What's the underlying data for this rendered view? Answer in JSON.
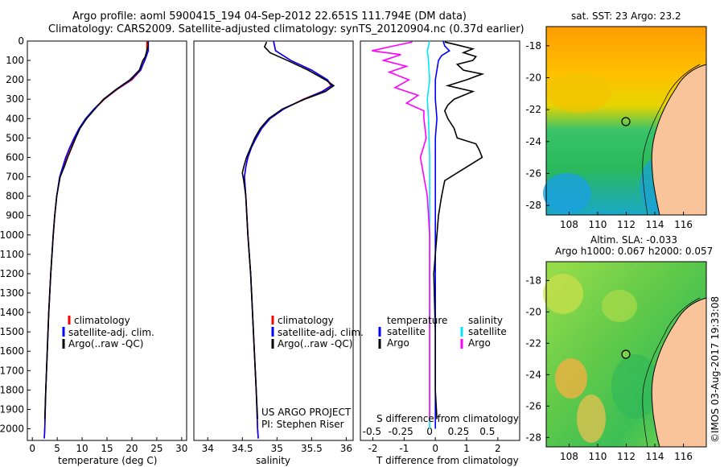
{
  "title": {
    "line1": "Argo profile: aoml 5900415_194 04-Sep-2012 22.651S 111.794E (DM data)",
    "line2": "Climatology: CARS2009. Satellite-adjusted climatology: synTS_20120904.nc (0.37d earlier)"
  },
  "colors": {
    "clim": "#ff0000",
    "sat": "#0000ff",
    "argo": "#000000",
    "sal_sat": "#00e5ff",
    "sal_argo": "#ff00ff"
  },
  "depth_ticks": [
    "0",
    "100",
    "200",
    "300",
    "400",
    "500",
    "600",
    "700",
    "800",
    "900",
    "1000",
    "1100",
    "1200",
    "1300",
    "1400",
    "1500",
    "1600",
    "1700",
    "1800",
    "1900",
    "2000"
  ],
  "chart_data": [
    {
      "type": "line",
      "name": "temperature",
      "xlabel": "temperature (deg C)",
      "ylabel": "depth",
      "xlim": [
        -1,
        31
      ],
      "ylim": [
        2060,
        0
      ],
      "xticks": [
        "0",
        "5",
        "10",
        "15",
        "20",
        "25",
        "30"
      ],
      "legend": [
        "climatology",
        "satellite-adj. clim.",
        "Argo(..raw -QC)"
      ],
      "series": [
        {
          "name": "climatology",
          "depth": [
            0,
            50,
            100,
            150,
            200,
            250,
            300,
            350,
            400,
            450,
            500,
            550,
            600,
            650,
            700,
            800,
            900,
            1000,
            1200,
            1400,
            1600,
            1800,
            2000,
            2050
          ],
          "values": [
            23,
            23,
            22.5,
            21.8,
            20,
            17,
            14.5,
            12.5,
            10.8,
            9.5,
            8.5,
            7.6,
            6.8,
            6.2,
            5.5,
            4.9,
            4.5,
            4.2,
            3.7,
            3.3,
            3,
            2.7,
            2.5,
            2.4
          ]
        },
        {
          "name": "satellite-adj. clim.",
          "depth": [
            0,
            50,
            100,
            150,
            200,
            250,
            300,
            350,
            400,
            450,
            500,
            550,
            600,
            650,
            700,
            800,
            900,
            1000,
            1200,
            1400,
            1600,
            1800,
            2000,
            2050
          ],
          "values": [
            23.3,
            23.3,
            22.6,
            21.7,
            19.8,
            16.9,
            14.4,
            12.4,
            10.7,
            9.4,
            8.4,
            7.5,
            6.7,
            6.1,
            5.5,
            4.9,
            4.5,
            4.2,
            3.7,
            3.3,
            3,
            2.7,
            2.5,
            2.4
          ]
        },
        {
          "name": "Argo",
          "depth": [
            5,
            20,
            50,
            80,
            100,
            150,
            200,
            250,
            300,
            350,
            400,
            450,
            500,
            550,
            600,
            650,
            700,
            800,
            900,
            1000,
            1200,
            1400,
            1600,
            1800,
            1950
          ],
          "values": [
            23.2,
            23.3,
            23.0,
            22.7,
            22.2,
            21.5,
            19.6,
            16.8,
            14.3,
            12.6,
            10.9,
            9.6,
            8.7,
            7.9,
            7.1,
            6.4,
            5.6,
            4.9,
            4.5,
            4.2,
            3.7,
            3.3,
            3,
            2.7,
            2.5
          ]
        }
      ]
    },
    {
      "type": "line",
      "name": "salinity",
      "xlabel": "salinity",
      "ylabel": "depth",
      "xlim": [
        33.8,
        36.1
      ],
      "ylim": [
        2060,
        0
      ],
      "xticks": [
        "34",
        "34.5",
        "35",
        "35.5",
        "36"
      ],
      "legend": [
        "climatology",
        "satellite-adj. clim.",
        "Argo(..raw -QC)"
      ],
      "annotation": [
        "US ARGO PROJECT",
        "PI: Stephen Riser"
      ],
      "series": [
        {
          "name": "climatology",
          "depth": [
            0,
            50,
            100,
            150,
            200,
            230,
            260,
            300,
            350,
            400,
            450,
            500,
            550,
            600,
            650,
            700,
            800,
            1000,
            1200,
            1500,
            1800,
            2000,
            2050
          ],
          "values": [
            34.95,
            34.98,
            35.2,
            35.5,
            35.72,
            35.78,
            35.65,
            35.38,
            35.1,
            34.9,
            34.78,
            34.7,
            34.63,
            34.58,
            34.55,
            34.53,
            34.55,
            34.58,
            34.62,
            34.66,
            34.7,
            34.72,
            34.73
          ]
        },
        {
          "name": "satellite-adj. clim.",
          "depth": [
            0,
            50,
            100,
            150,
            200,
            230,
            260,
            300,
            350,
            400,
            450,
            500,
            550,
            600,
            650,
            700,
            800,
            1000,
            1200,
            1500,
            1800,
            2000,
            2050
          ],
          "values": [
            34.95,
            34.98,
            35.2,
            35.5,
            35.73,
            35.79,
            35.66,
            35.39,
            35.1,
            34.9,
            34.78,
            34.7,
            34.63,
            34.58,
            34.55,
            34.53,
            34.55,
            34.58,
            34.62,
            34.66,
            34.7,
            34.72,
            34.73
          ]
        },
        {
          "name": "Argo",
          "depth": [
            5,
            30,
            60,
            100,
            150,
            200,
            230,
            260,
            300,
            350,
            400,
            450,
            500,
            550,
            600,
            650,
            680,
            720,
            800,
            1000,
            1200,
            1500,
            1800,
            1950
          ],
          "values": [
            34.85,
            34.82,
            34.9,
            35.15,
            35.45,
            35.7,
            35.82,
            35.7,
            35.4,
            35.08,
            34.88,
            34.76,
            34.68,
            34.62,
            34.56,
            34.52,
            34.5,
            34.52,
            34.55,
            34.58,
            34.62,
            34.66,
            34.7,
            34.72
          ]
        }
      ]
    },
    {
      "type": "line",
      "name": "differences",
      "xlabel": "T difference from climatology",
      "xlabel_top": "S difference from climatology",
      "xlim": [
        -2.4,
        2.7
      ],
      "ylim": [
        2060,
        0
      ],
      "xticks": [
        "-2",
        "-1",
        "0",
        "1",
        "2"
      ],
      "xticks_top": [
        "-0.5",
        "-0.25",
        "0",
        "0.25",
        "0.5"
      ],
      "legend_left": [
        "temperature",
        "satellite",
        "Argo"
      ],
      "legend_right": [
        "salinity",
        "satellite",
        "Argo"
      ],
      "series": [
        {
          "name": "T satellite",
          "depth": [
            0,
            25,
            50,
            75,
            100,
            150,
            200,
            300,
            400,
            500,
            700,
            1000,
            1500,
            2000
          ],
          "values": [
            0.25,
            0.3,
            0.45,
            0.2,
            0.1,
            0.05,
            0.0,
            0.0,
            0.05,
            0.0,
            0.0,
            0.0,
            0.0,
            0.0
          ]
        },
        {
          "name": "T Argo",
          "depth": [
            5,
            20,
            40,
            60,
            80,
            100,
            120,
            150,
            170,
            200,
            230,
            260,
            300,
            330,
            360,
            400,
            450,
            500,
            530,
            560,
            600,
            640,
            680,
            720,
            800,
            900,
            1000,
            1100,
            1200,
            1500,
            1800,
            1950
          ],
          "values": [
            0.3,
            0.7,
            1.2,
            0.9,
            1.3,
            1.2,
            0.7,
            0.9,
            1.5,
            1.0,
            0.4,
            1.2,
            0.6,
            0.4,
            0.3,
            0.4,
            0.6,
            0.7,
            1.3,
            1.4,
            1.5,
            1.1,
            0.7,
            0.3,
            0.2,
            0.1,
            0.05,
            0.0,
            -0.05,
            0.0,
            0.0,
            0.05
          ]
        },
        {
          "name": "S satellite",
          "depth": [
            0,
            50,
            100,
            200,
            300,
            400,
            600,
            800,
            1000,
            1500,
            2000
          ],
          "values": [
            0.0,
            -0.02,
            -0.01,
            0.0,
            -0.02,
            -0.01,
            0.0,
            0.0,
            0.0,
            0.0,
            0.0
          ]
        },
        {
          "name": "S Argo",
          "depth": [
            5,
            30,
            50,
            70,
            100,
            130,
            160,
            200,
            240,
            280,
            320,
            360,
            400,
            500,
            600,
            700,
            800,
            1000,
            1500,
            1950
          ],
          "values": [
            -0.15,
            -0.35,
            -0.5,
            -0.25,
            -0.4,
            -0.2,
            -0.35,
            -0.18,
            -0.3,
            -0.1,
            -0.2,
            -0.05,
            -0.05,
            -0.03,
            -0.08,
            -0.05,
            -0.02,
            0.0,
            0.0,
            0.0
          ]
        }
      ]
    }
  ],
  "map_top": {
    "title": "sat. SST: 23 Argo: 23.2",
    "lat_ticks": [
      "-18",
      "-20",
      "-22",
      "-24",
      "-26",
      "-28"
    ],
    "lon_ticks": [
      "108",
      "110",
      "112",
      "114",
      "116"
    ],
    "argo_lon": 111.794,
    "argo_lat": -22.651
  },
  "map_bottom": {
    "title1": "Altim. SLA: -0.033",
    "title2": "Argo h1000: 0.067 h2000: 0.057",
    "lat_ticks": [
      "-18",
      "-20",
      "-22",
      "-24",
      "-26",
      "-28"
    ],
    "lon_ticks": [
      "108",
      "110",
      "112",
      "114",
      "116"
    ],
    "argo_lon": 111.794,
    "argo_lat": -22.651
  },
  "footer": "©IMOS 03-Aug-2017 19:33:08"
}
